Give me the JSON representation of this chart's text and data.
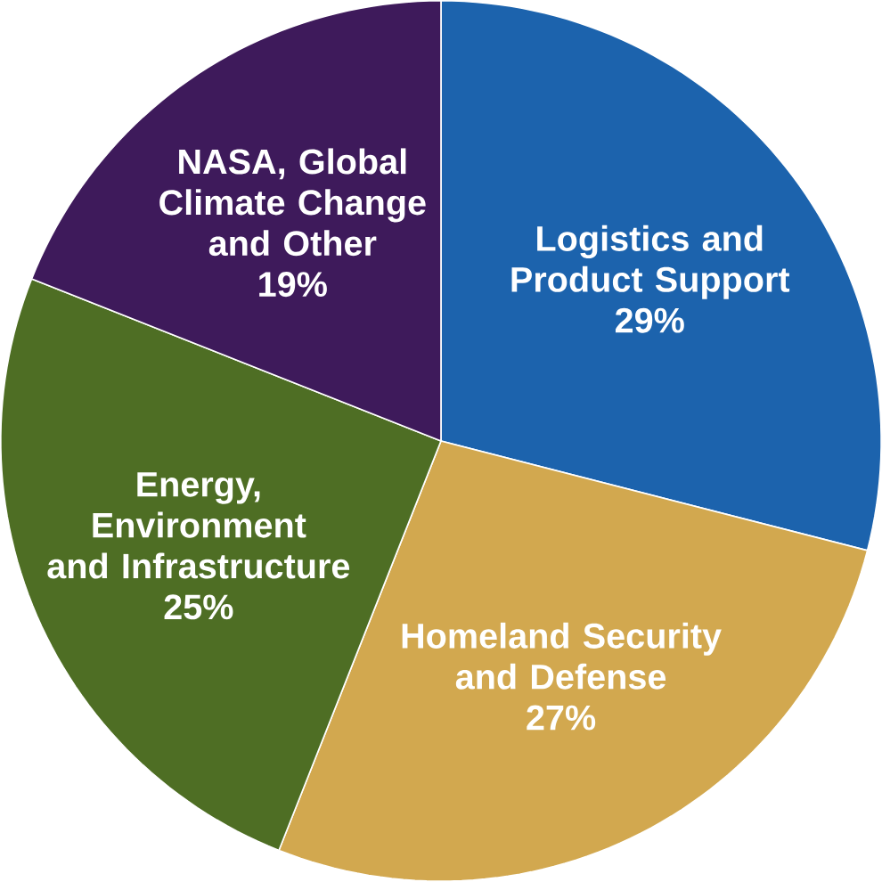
{
  "chart_data": {
    "type": "pie",
    "categories": [
      "Logistics and Product Support",
      "Homeland Security and Defense",
      "Energy, Environment and Infrastructure",
      "NASA, Global Climate Change and Other"
    ],
    "values": [
      29,
      27,
      25,
      19
    ],
    "value_labels": [
      "29%",
      "27%",
      "25%",
      "19%"
    ],
    "colors": [
      "#1c63ad",
      "#d2a84f",
      "#4e6e24",
      "#3e1a5b"
    ]
  }
}
